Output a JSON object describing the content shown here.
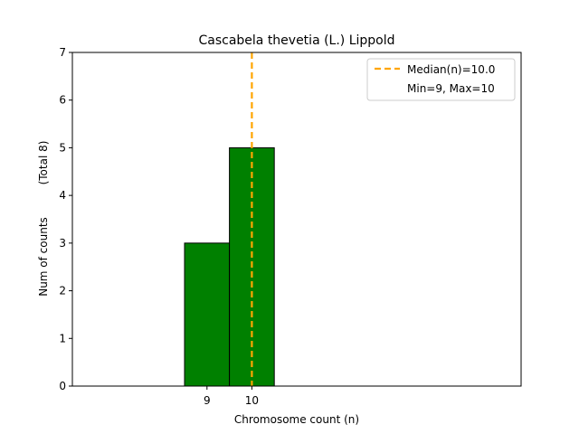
{
  "chart_data": {
    "type": "bar",
    "title": "Cascabela thevetia (L.) Lippold",
    "xlabel": "Chromosome count (n)",
    "ylabel": "Num of counts",
    "ylabel_note": "(Total 8)",
    "xlim": [
      6,
      16
    ],
    "ylim": [
      0,
      7
    ],
    "y_ticks": [
      0,
      1,
      2,
      3,
      4,
      5,
      6,
      7
    ],
    "x_ticks": [
      9,
      10
    ],
    "bars": [
      {
        "x": 9,
        "value": 3
      },
      {
        "x": 10,
        "value": 5
      }
    ],
    "bar_width": 1,
    "bar_color": "#008000",
    "baseline_extent": [
      6,
      13.5
    ],
    "median": 10.0,
    "median_color": "#ffa500",
    "legend": {
      "placement": "top-right",
      "entries": [
        "Median(n)=10.0",
        "Min=9, Max=10"
      ]
    },
    "grid": false
  }
}
